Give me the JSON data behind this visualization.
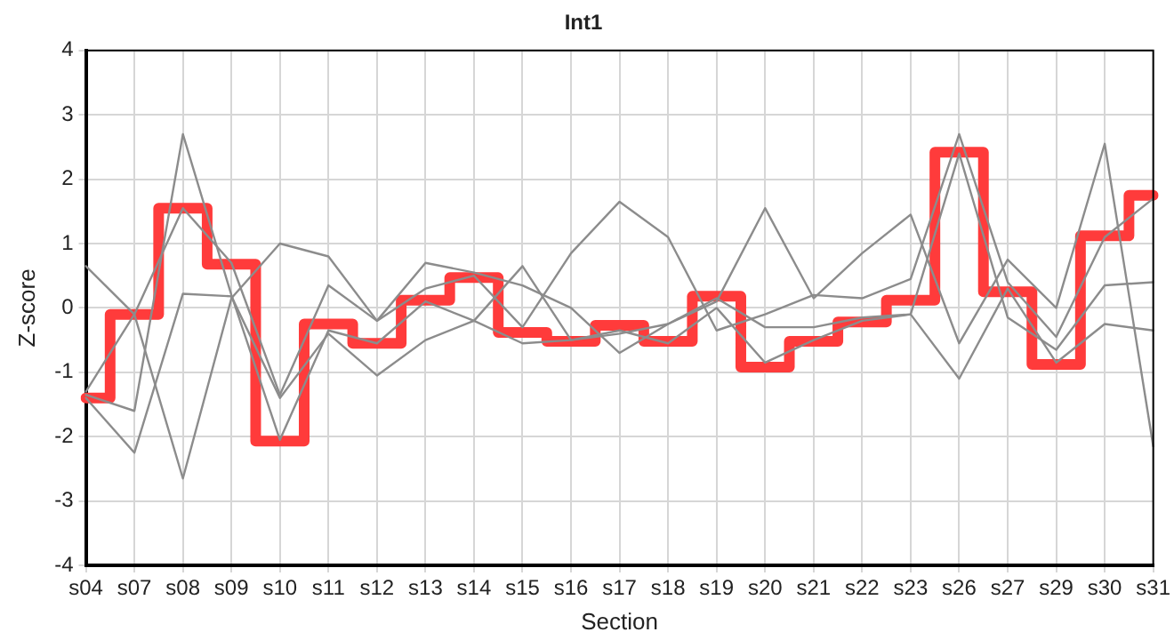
{
  "chart_data": {
    "type": "line",
    "title": "Int1",
    "xlabel": "Section",
    "ylabel": "Z-score",
    "categories": [
      "s04",
      "s07",
      "s08",
      "s09",
      "s10",
      "s11",
      "s12",
      "s13",
      "s14",
      "s15",
      "s16",
      "s17",
      "s18",
      "s19",
      "s20",
      "s21",
      "s22",
      "s23",
      "s26",
      "s27",
      "s29",
      "s30",
      "s31"
    ],
    "series": [
      {
        "type": "line",
        "color": "#8c8c8c",
        "values": [
          0.65,
          -0.1,
          -2.65,
          0.15,
          1.0,
          0.8,
          -0.2,
          0.7,
          0.55,
          0.35,
          0.0,
          -0.7,
          -0.25,
          0.1,
          1.55,
          0.15,
          0.85,
          1.45,
          -0.55,
          0.75,
          0.0,
          2.55,
          -2.15
        ]
      },
      {
        "type": "line",
        "color": "#8c8c8c",
        "values": [
          -1.3,
          -0.1,
          1.55,
          0.7,
          -1.35,
          0.35,
          -0.2,
          0.3,
          0.5,
          -0.3,
          0.85,
          1.65,
          1.1,
          -0.35,
          -0.1,
          0.2,
          0.15,
          0.45,
          2.7,
          0.4,
          -0.45,
          1.1,
          1.7
        ]
      },
      {
        "type": "line",
        "color": "#8c8c8c",
        "values": [
          -1.35,
          -1.6,
          2.7,
          0.2,
          -2.05,
          -0.35,
          -0.55,
          0.1,
          -0.2,
          0.65,
          -0.5,
          -0.4,
          -0.25,
          0.15,
          -0.3,
          -0.3,
          -0.15,
          -0.1,
          2.4,
          -0.15,
          -0.65,
          0.35,
          0.4
        ]
      },
      {
        "type": "line",
        "color": "#8c8c8c",
        "values": [
          -1.4,
          -2.25,
          0.22,
          0.18,
          -1.4,
          -0.4,
          -1.05,
          -0.5,
          -0.2,
          -0.55,
          -0.5,
          -0.35,
          -0.55,
          0.0,
          -0.85,
          -0.5,
          -0.2,
          -0.1,
          -1.1,
          0.3,
          -0.85,
          -0.25,
          -0.35
        ]
      },
      {
        "type": "step",
        "color": "#ff3b3b",
        "values": [
          -1.4,
          -0.1,
          1.55,
          0.68,
          -2.07,
          -0.25,
          -0.55,
          0.12,
          0.47,
          -0.38,
          -0.52,
          -0.27,
          -0.52,
          0.18,
          -0.92,
          -0.52,
          -0.22,
          0.12,
          2.42,
          0.25,
          -0.88,
          1.12,
          1.75
        ]
      }
    ],
    "ylim": [
      -4,
      4
    ],
    "yticks": [
      -4,
      -3,
      -2,
      -1,
      0,
      1,
      2,
      3,
      4
    ],
    "grid": true,
    "legend": false,
    "marker": "none"
  }
}
